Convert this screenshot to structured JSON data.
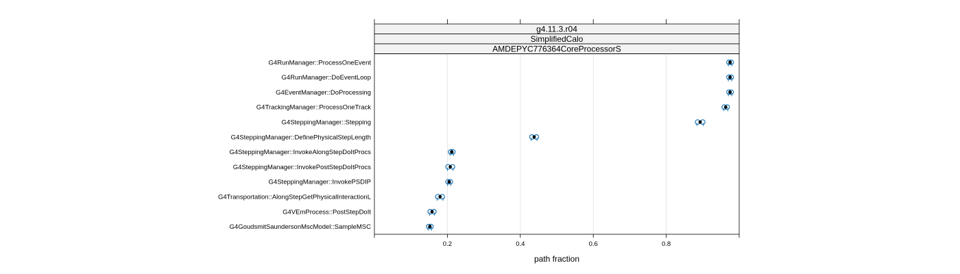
{
  "chart_data": {
    "type": "scatter",
    "strips": [
      "g4.11.3.r04",
      "SimplifiedCalo",
      "AMDEPYC776364CoreProcessorS"
    ],
    "xlabel": "path fraction",
    "xlim": [
      0.0,
      1.0
    ],
    "xticks": [
      0.2,
      0.4,
      0.6,
      0.8
    ],
    "grid": true,
    "colors": {
      "marker": "#1f77b4",
      "center": "#000000"
    },
    "categories": [
      "G4RunManager::ProcessOneEvent",
      "G4RunManager::DoEventLoop",
      "G4EventManager::DoProcessing",
      "G4TrackingManager::ProcessOneTrack",
      "G4SteppingManager::Stepping",
      "G4SteppingManager::DefinePhysicalStepLength",
      "G4SteppingManager::InvokeAlongStepDoItProcs",
      "G4SteppingManager::InvokePostStepDoItProcs",
      "G4SteppingManager::InvokePSDIP",
      "G4Transportation::AlongStepGetPhysicalInteractionL",
      "G4VEmProcess::PostStepDoIt",
      "G4GoudsmitSaundersonMscModel::SampleMSC"
    ],
    "values": [
      0.975,
      0.975,
      0.975,
      0.963,
      0.893,
      0.438,
      0.212,
      0.208,
      0.205,
      0.18,
      0.158,
      0.152
    ],
    "spread": [
      0.003,
      0.003,
      0.003,
      0.004,
      0.007,
      0.006,
      0.003,
      0.006,
      0.003,
      0.006,
      0.005,
      0.003
    ]
  }
}
